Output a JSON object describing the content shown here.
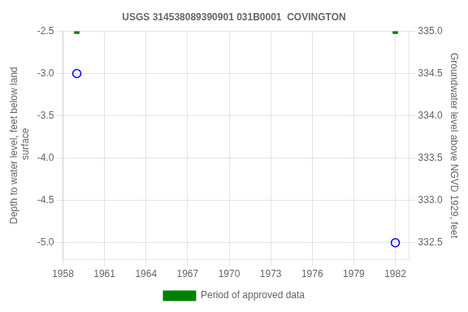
{
  "chart_data": {
    "type": "scatter",
    "title": "USGS 314538089390901 031B0001  COVINGTON",
    "x": [
      1959.0,
      1982.0
    ],
    "series": [
      {
        "values": [
          -3.0,
          -5.0
        ],
        "color": "#0000ff",
        "marker": "circle"
      },
      {
        "name": "Period of approved data",
        "values": [
          -2.5,
          -2.5
        ],
        "color": "#008000",
        "marker": "square"
      }
    ],
    "xlim": [
      1958,
      1983
    ],
    "xticks": [
      1958,
      1961,
      1964,
      1967,
      1970,
      1973,
      1976,
      1979,
      1982
    ],
    "ylim": [
      -5.2,
      -2.5
    ],
    "yticks": [
      {
        "value": -5.0,
        "label": "-5.0"
      },
      -4.5,
      {
        "value": -4.0,
        "label": "-4.0"
      },
      -3.5,
      {
        "value": -3.0,
        "label": "-3.0"
      },
      -2.5
    ],
    "y2lim": [
      332.3,
      335.0
    ],
    "y2ticks": [
      332.5,
      {
        "value": 333.0,
        "label": "333.0"
      },
      333.5,
      {
        "value": 334.0,
        "label": "334.0"
      },
      334.5,
      {
        "value": 335.0,
        "label": "335.0"
      }
    ],
    "ylabel": "Depth to water level, feet below land\n surface",
    "y2label": "Groundwater level above NGVD 1929, feet",
    "grid": true,
    "legend": "bottom"
  }
}
